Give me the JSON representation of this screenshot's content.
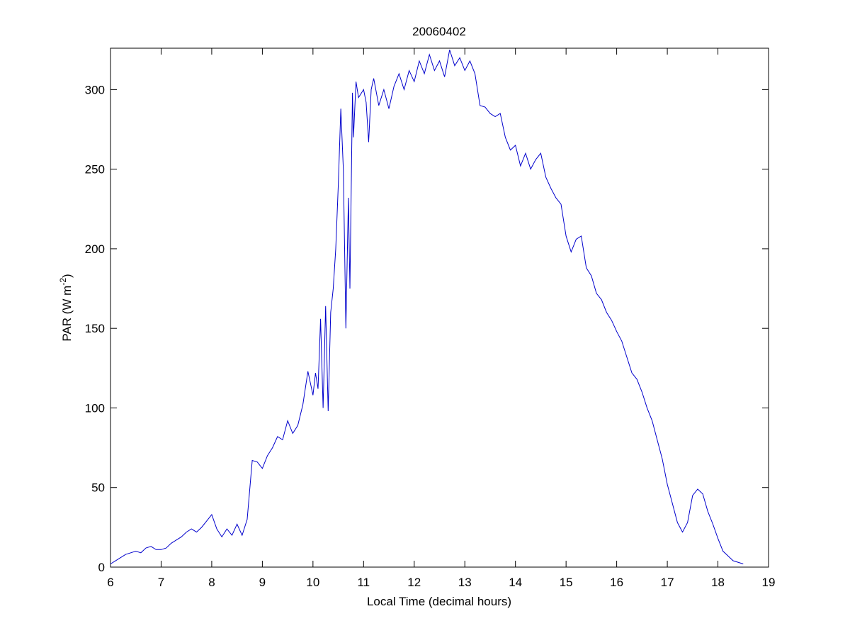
{
  "chart_data": {
    "type": "line",
    "title": "20060402",
    "xlabel": "Local Time (decimal hours)",
    "ylabel": [
      "PAR (W m",
      "-2",
      ")"
    ],
    "xlim": [
      6,
      19
    ],
    "ylim": [
      0,
      326
    ],
    "xticks": [
      6,
      7,
      8,
      9,
      10,
      11,
      12,
      13,
      14,
      15,
      16,
      17,
      18,
      19
    ],
    "yticks": [
      0,
      50,
      100,
      150,
      200,
      250,
      300
    ],
    "grid": false,
    "series": [
      {
        "color": "#0000cc",
        "x": [
          6.0,
          6.1,
          6.2,
          6.3,
          6.4,
          6.5,
          6.6,
          6.7,
          6.8,
          6.9,
          7.0,
          7.1,
          7.2,
          7.3,
          7.4,
          7.5,
          7.6,
          7.7,
          7.8,
          7.9,
          8.0,
          8.1,
          8.2,
          8.3,
          8.4,
          8.5,
          8.6,
          8.7,
          8.8,
          8.9,
          9.0,
          9.1,
          9.2,
          9.3,
          9.4,
          9.5,
          9.6,
          9.7,
          9.8,
          9.9,
          10.0,
          10.05,
          10.1,
          10.15,
          10.2,
          10.25,
          10.3,
          10.35,
          10.4,
          10.45,
          10.5,
          10.55,
          10.6,
          10.65,
          10.7,
          10.73,
          10.78,
          10.8,
          10.85,
          10.9,
          11.0,
          11.05,
          11.1,
          11.15,
          11.2,
          11.3,
          11.4,
          11.5,
          11.6,
          11.7,
          11.8,
          11.9,
          12.0,
          12.1,
          12.2,
          12.3,
          12.4,
          12.5,
          12.6,
          12.7,
          12.8,
          12.9,
          13.0,
          13.1,
          13.2,
          13.3,
          13.4,
          13.5,
          13.6,
          13.7,
          13.8,
          13.9,
          14.0,
          14.1,
          14.2,
          14.3,
          14.4,
          14.5,
          14.6,
          14.7,
          14.8,
          14.9,
          15.0,
          15.1,
          15.2,
          15.3,
          15.4,
          15.5,
          15.6,
          15.7,
          15.8,
          15.9,
          16.0,
          16.1,
          16.2,
          16.3,
          16.4,
          16.5,
          16.6,
          16.7,
          16.8,
          16.9,
          17.0,
          17.1,
          17.2,
          17.3,
          17.4,
          17.5,
          17.6,
          17.7,
          17.8,
          17.9,
          18.0,
          18.1,
          18.2,
          18.3,
          18.4,
          18.5
        ],
        "values": [
          2,
          4,
          6,
          8,
          9,
          10,
          9,
          12,
          13,
          11,
          11,
          12,
          15,
          17,
          19,
          22,
          24,
          22,
          25,
          29,
          33,
          24,
          19,
          24,
          20,
          27,
          20,
          30,
          67,
          66,
          62,
          70,
          75,
          82,
          80,
          92,
          84,
          89,
          102,
          123,
          108,
          122,
          112,
          156,
          100,
          164,
          98,
          160,
          175,
          200,
          240,
          288,
          250,
          150,
          232,
          175,
          298,
          270,
          305,
          295,
          300,
          292,
          267,
          300,
          307,
          290,
          300,
          288,
          302,
          310,
          300,
          312,
          305,
          318,
          310,
          322,
          312,
          318,
          308,
          325,
          315,
          320,
          312,
          318,
          310,
          290,
          289,
          285,
          283,
          285,
          270,
          262,
          265,
          252,
          260,
          250,
          256,
          260,
          245,
          238,
          232,
          228,
          208,
          198,
          206,
          208,
          188,
          183,
          172,
          168,
          160,
          155,
          148,
          142,
          132,
          122,
          118,
          110,
          100,
          92,
          80,
          68,
          52,
          40,
          28,
          22,
          28,
          45,
          49,
          46,
          35,
          27,
          18,
          10,
          7,
          4,
          3,
          2
        ]
      }
    ]
  }
}
